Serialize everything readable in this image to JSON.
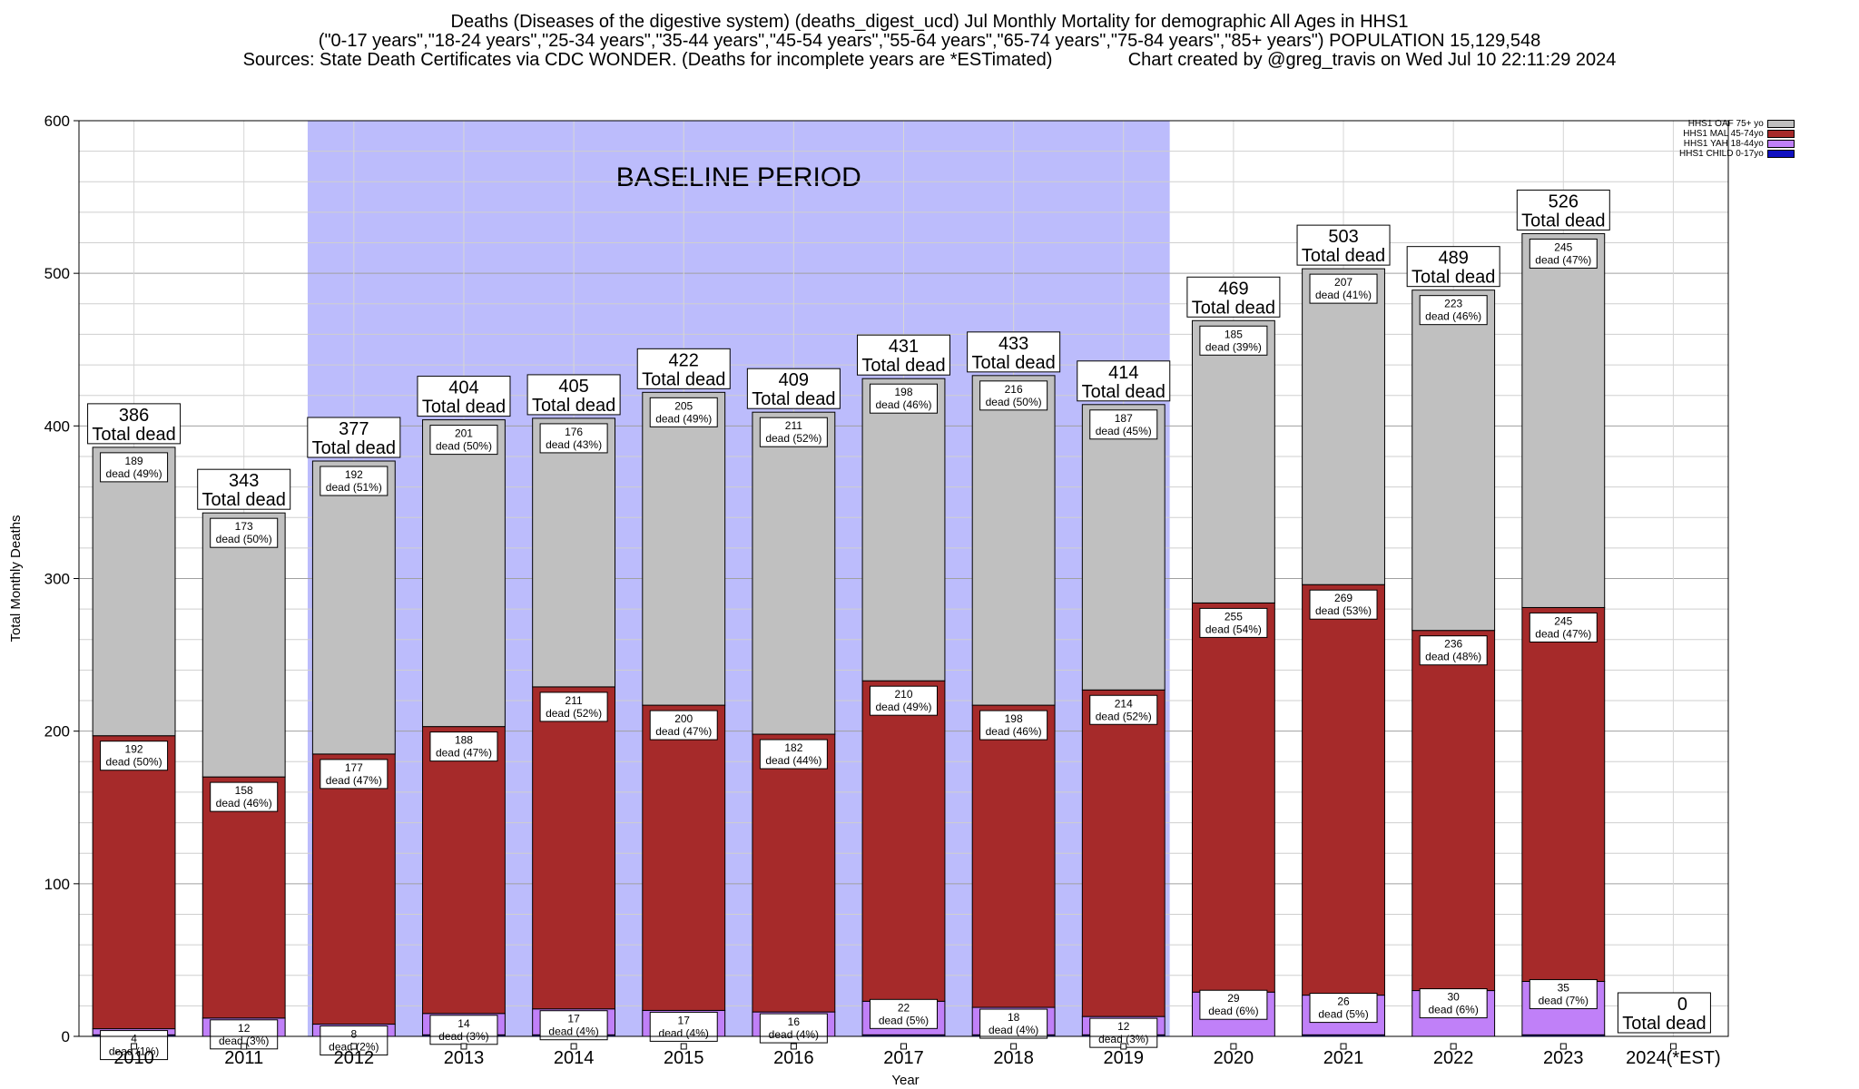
{
  "titles": {
    "line1": "Deaths (Diseases of the digestive system) (deaths_digest_ucd) Jul Monthly Mortality for demographic All Ages in HHS1",
    "line2": "(\"0-17 years\",\"18-24 years\",\"25-34 years\",\"35-44 years\",\"45-54 years\",\"55-64 years\",\"65-74 years\",\"75-84 years\",\"85+ years\") POPULATION 15,129,548",
    "line3_left": "Sources: State Death Certificates via CDC WONDER. (Deaths for incomplete years are *ESTimated)",
    "line3_right": "Chart created by @greg_travis on Wed Jul 10 22:11:29 2024"
  },
  "colors": {
    "baseline": "#bcbcfc",
    "child": "#1010c0",
    "yah": "#c080f8",
    "mal": "#a62a2a",
    "oaf": "#c0c0c0"
  },
  "chart_data": {
    "type": "bar",
    "stacked": true,
    "xlabel": "Year",
    "ylabel": "Total Monthly Deaths",
    "ylim": [
      0,
      600
    ],
    "yticks": [
      0,
      100,
      200,
      300,
      400,
      500,
      600
    ],
    "grid": true,
    "legend_position": "top-right",
    "baseline_label": "BASELINE PERIOD",
    "baseline_range": [
      "2012",
      "2019"
    ],
    "categories": [
      "2010",
      "2011",
      "2012",
      "2013",
      "2014",
      "2015",
      "2016",
      "2017",
      "2018",
      "2019",
      "2020",
      "2021",
      "2022",
      "2023",
      "2024(*EST)"
    ],
    "totals": [
      386,
      343,
      377,
      404,
      405,
      422,
      409,
      431,
      433,
      414,
      469,
      503,
      489,
      526,
      0
    ],
    "total_label": "Total dead",
    "segment_suffix": "dead",
    "series": [
      {
        "name": "HHS1 CHILD 0-17yo",
        "color": "#1010c0",
        "values": [
          1,
          0,
          0,
          1,
          1,
          0,
          0,
          1,
          1,
          1,
          0,
          1,
          0,
          1,
          0
        ]
      },
      {
        "name": "HHS1 YAH 18-44yo",
        "color": "#c080f8",
        "values": [
          4,
          12,
          8,
          14,
          17,
          17,
          16,
          22,
          18,
          12,
          29,
          26,
          30,
          35,
          0
        ],
        "labels": [
          "4 dead (1%)",
          "12 dead (3%)",
          "8 dead (2%)",
          "14 dead (3%)",
          "17 dead (4%)",
          "17 dead (4%)",
          "16 dead (4%)",
          "22 dead (5%)",
          "18 dead (4%)",
          "12 dead (3%)",
          "29 dead (6%)",
          "26 dead (5%)",
          "30 dead (6%)",
          "35 dead (7%)",
          ""
        ]
      },
      {
        "name": "HHS1 MAL 45-74yo",
        "color": "#a62a2a",
        "values": [
          192,
          158,
          177,
          188,
          211,
          200,
          182,
          210,
          198,
          214,
          255,
          269,
          236,
          245,
          0
        ],
        "labels": [
          "192 dead (50%)",
          "158 dead (46%)",
          "177 dead (47%)",
          "188 dead (47%)",
          "211 dead (52%)",
          "200 dead (47%)",
          "182 dead (44%)",
          "210 dead (49%)",
          "198 dead (46%)",
          "214 dead (52%)",
          "255 dead (54%)",
          "269 dead (53%)",
          "236 dead (48%)",
          "245 dead (47%)",
          ""
        ]
      },
      {
        "name": "HHS1 OAF 75+ yo",
        "color": "#c0c0c0",
        "values": [
          189,
          173,
          192,
          201,
          176,
          205,
          211,
          198,
          216,
          187,
          185,
          207,
          223,
          245,
          0
        ],
        "labels": [
          "189 dead (49%)",
          "173 dead (50%)",
          "192 dead (51%)",
          "201 dead (50%)",
          "176 dead (43%)",
          "205 dead (49%)",
          "211 dead (52%)",
          "198 dead (46%)",
          "216 dead (50%)",
          "187 dead (45%)",
          "185 dead (39%)",
          "207 dead (41%)",
          "223 dead (46%)",
          "245 dead (47%)",
          ""
        ]
      }
    ]
  }
}
